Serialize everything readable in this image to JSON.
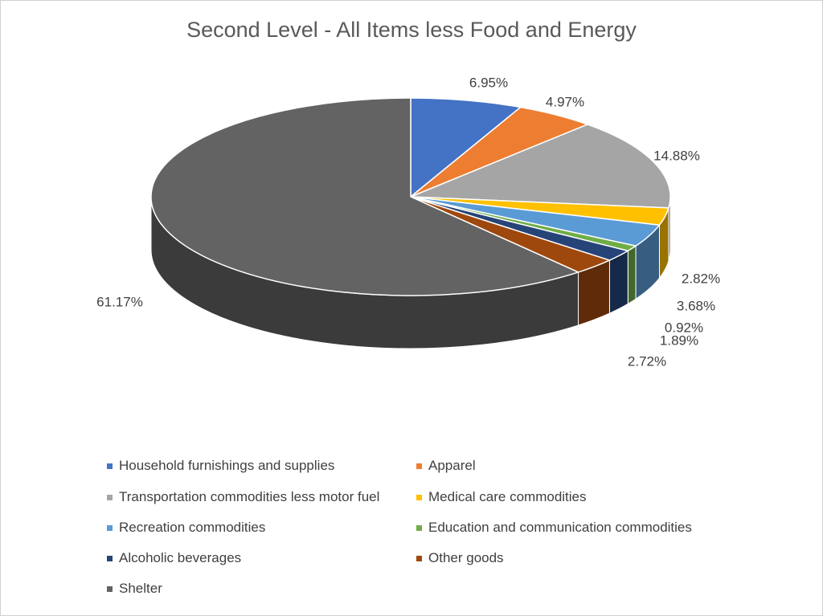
{
  "chart_data": {
    "type": "pie",
    "title": "Second Level - All Items less Food and Energy",
    "categories": [
      "Household furnishings and supplies",
      "Apparel",
      "Transportation commodities less motor fuel",
      "Medical care commodities",
      "Recreation commodities",
      "Education and communication commodities",
      "Alcoholic beverages",
      "Other goods",
      "Shelter"
    ],
    "values": [
      6.95,
      4.97,
      14.88,
      2.82,
      3.68,
      0.92,
      1.89,
      2.72,
      61.17
    ],
    "labels": [
      "6.95%",
      "4.97%",
      "14.88%",
      "2.82%",
      "3.68%",
      "0.92%",
      "1.89%",
      "2.72%",
      "61.17%"
    ],
    "colors": [
      "#4472c4",
      "#ed7d31",
      "#a5a5a5",
      "#ffc000",
      "#5b9bd5",
      "#70ad47",
      "#264478",
      "#9e480e",
      "#636363"
    ],
    "style": "3d",
    "legend_position": "bottom"
  }
}
